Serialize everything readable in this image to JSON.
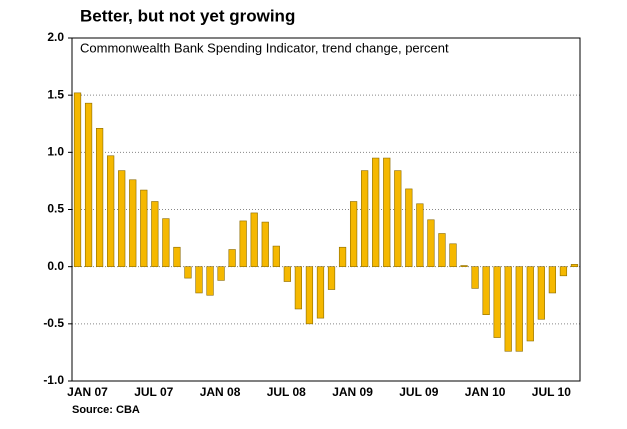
{
  "chart_data": {
    "type": "bar",
    "title": "Better, but not yet growing",
    "subtitle": "Commonwealth Bank Spending Indicator, trend change, percent",
    "source": "Source: CBA",
    "categories": [
      "JAN 07",
      null,
      null,
      null,
      null,
      null,
      "JUL 07",
      null,
      null,
      null,
      null,
      null,
      "JAN 08",
      null,
      null,
      null,
      null,
      null,
      "JUL 08",
      null,
      null,
      null,
      null,
      null,
      "JAN 09",
      null,
      null,
      null,
      null,
      null,
      "JUL 09",
      null,
      null,
      null,
      null,
      null,
      "JAN 10",
      null,
      null,
      null,
      null,
      null,
      "JUL 10",
      null,
      null,
      null
    ],
    "values": [
      1.52,
      1.43,
      1.21,
      0.97,
      0.84,
      0.76,
      0.67,
      0.57,
      0.42,
      0.17,
      -0.1,
      -0.23,
      -0.25,
      -0.12,
      0.15,
      0.4,
      0.47,
      0.39,
      0.18,
      -0.13,
      -0.37,
      -0.5,
      -0.45,
      -0.2,
      0.17,
      0.57,
      0.84,
      0.95,
      0.95,
      0.84,
      0.68,
      0.55,
      0.41,
      0.29,
      0.2,
      0.01,
      -0.19,
      -0.42,
      -0.62,
      -0.74,
      -0.74,
      -0.65,
      -0.46,
      -0.23,
      -0.08,
      0.02
    ],
    "color": "#f5b800",
    "ylim": [
      -1,
      2
    ],
    "yticks": [
      {
        "value": -1,
        "label": "-1.0"
      },
      -0.5,
      {
        "value": 0,
        "label": "0.0"
      },
      0.5,
      {
        "value": 1,
        "label": "1.0"
      },
      1.5,
      {
        "value": 2,
        "label": "2.0"
      }
    ],
    "grid": true
  }
}
